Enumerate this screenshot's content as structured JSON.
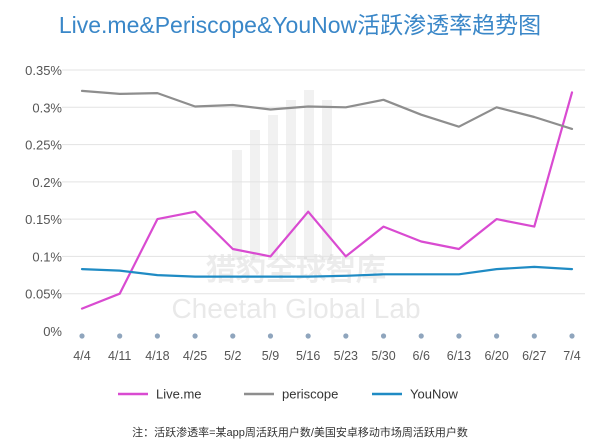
{
  "chart_data": {
    "type": "line",
    "title": "Live.me&Periscope&YouNow活跃渗透率趋势图",
    "note": "注：活跃渗透率=某app周活跃用户数/美国安卓移动市场周活跃用户数",
    "watermark": {
      "cn": "猎豹全球智库",
      "en": "Cheetah Global Lab"
    },
    "categories": [
      "4/4",
      "4/11",
      "4/18",
      "4/25",
      "5/2",
      "5/9",
      "5/16",
      "5/23",
      "5/30",
      "6/6",
      "6/13",
      "6/20",
      "6/27",
      "7/4"
    ],
    "y_ticks": [
      "0%",
      "0.05%",
      "0.1%",
      "0.15%",
      "0.2%",
      "0.25%",
      "0.3%",
      "0.35%"
    ],
    "ylim": [
      0,
      0.35
    ],
    "grid": "horizontal",
    "legend_position": "bottom",
    "series": [
      {
        "name": "Live.me",
        "color": "#d94bd1",
        "values": [
          0.03,
          0.05,
          0.15,
          0.16,
          0.11,
          0.1,
          0.16,
          0.1,
          0.14,
          0.12,
          0.11,
          0.15,
          0.14,
          0.32
        ]
      },
      {
        "name": "periscope",
        "color": "#8e8e8e",
        "values": [
          0.322,
          0.318,
          0.319,
          0.301,
          0.303,
          0.297,
          0.301,
          0.3,
          0.31,
          0.29,
          0.274,
          0.3,
          0.287,
          0.271
        ]
      },
      {
        "name": "YouNow",
        "color": "#1f8bc4",
        "values": [
          0.083,
          0.081,
          0.075,
          0.073,
          0.073,
          0.073,
          0.073,
          0.074,
          0.076,
          0.076,
          0.076,
          0.083,
          0.086,
          0.083
        ]
      }
    ],
    "marker_color": "#8fa5bd"
  }
}
